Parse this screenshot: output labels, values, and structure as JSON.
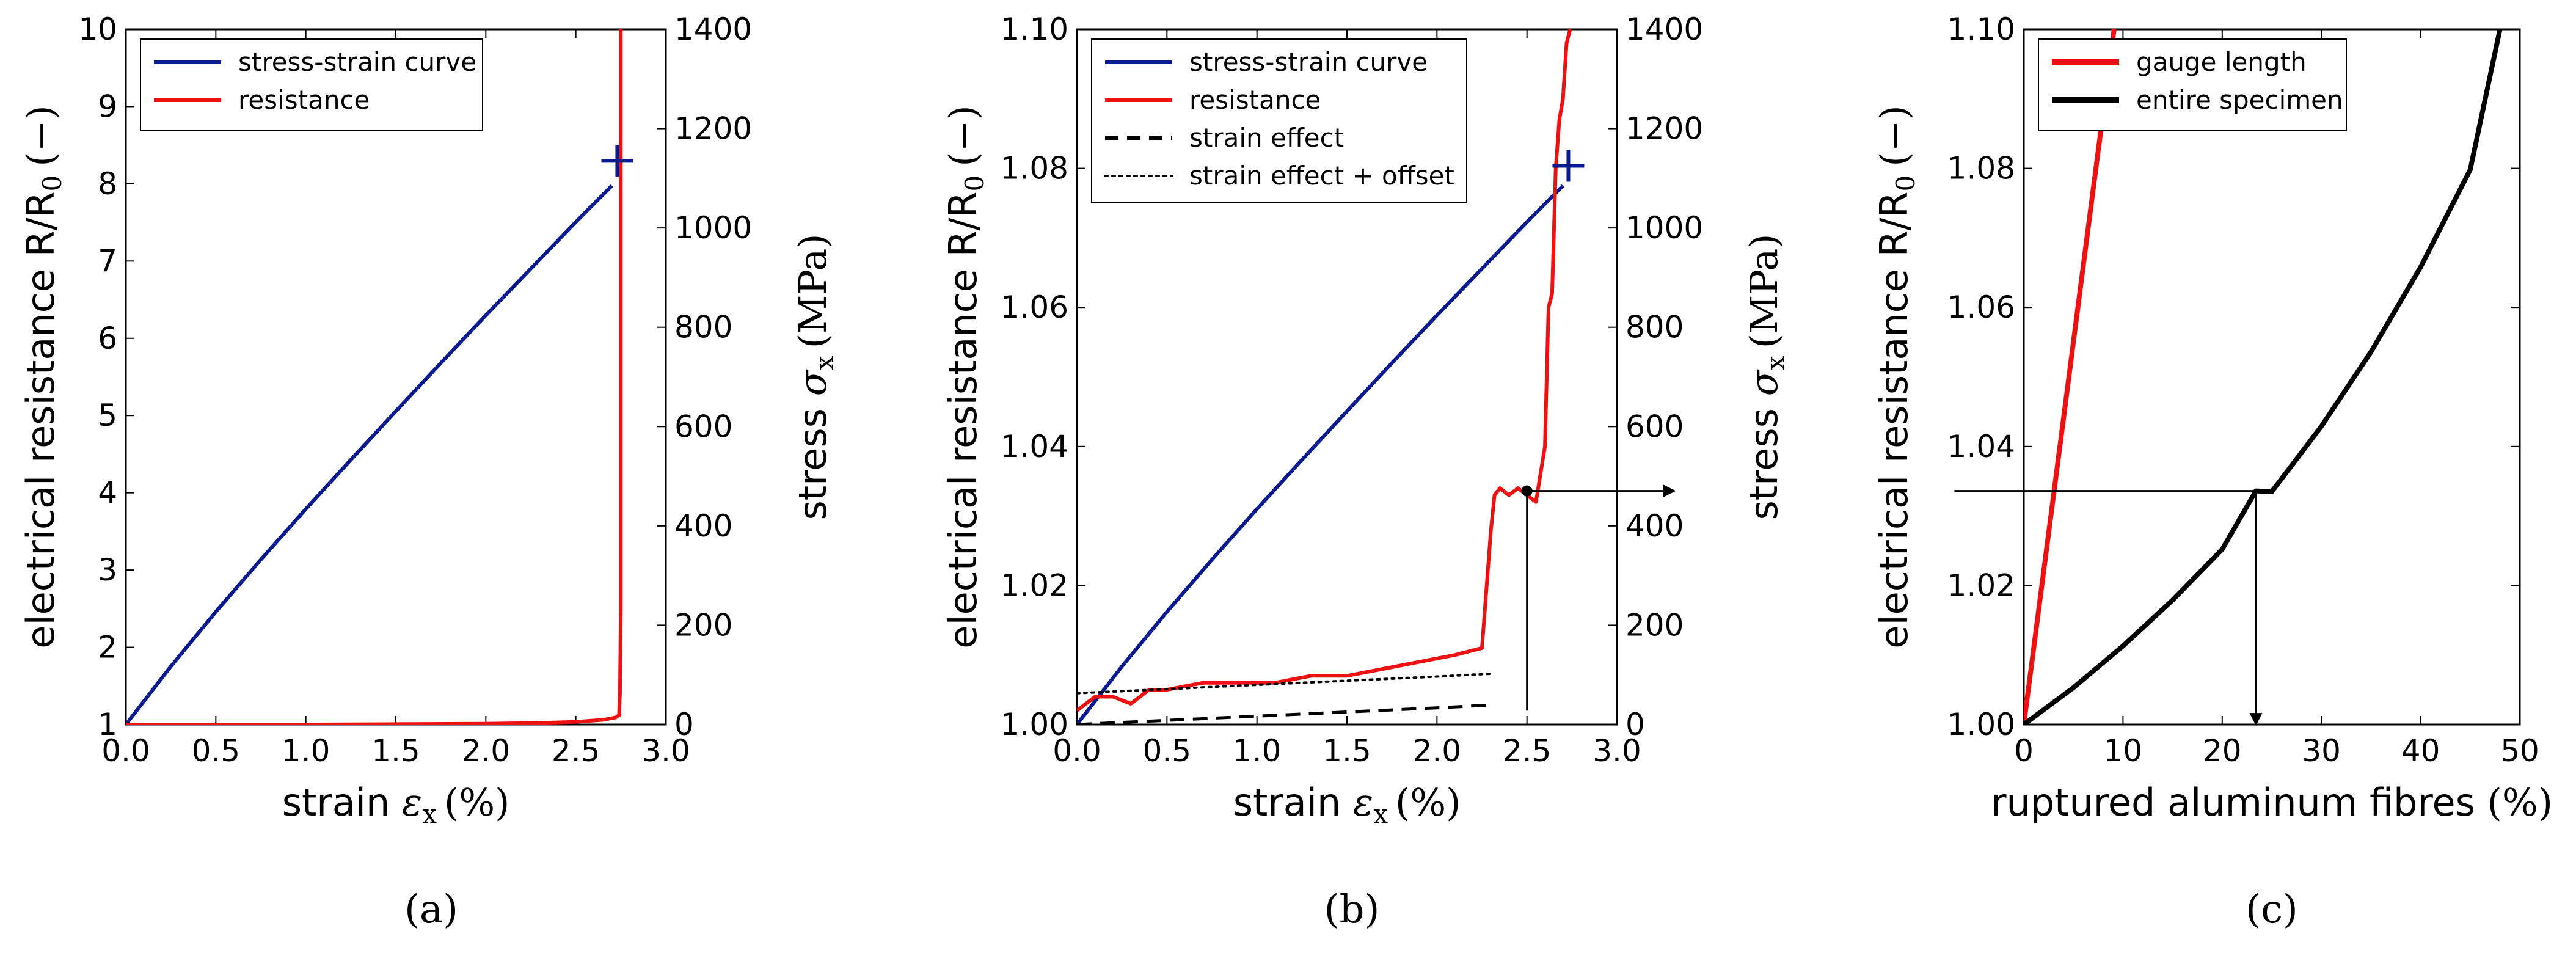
{
  "chart_data": [
    {
      "id": "a",
      "type": "line",
      "caption": "(a)",
      "xlabel": "strain",
      "xlabel_symbol": "ε",
      "xlabel_sub": "x",
      "xlabel_unit": "(%)",
      "ylabel": "electrical resistance R/R",
      "ylabel_sub": "0",
      "ylabel_unit": "(−)",
      "y2label": "stress",
      "y2label_symbol": "σ",
      "y2label_sub": "x",
      "y2label_unit": "(MPa)",
      "xlim": [
        0,
        3.0
      ],
      "ylim": [
        1,
        10
      ],
      "y2lim": [
        0,
        1400
      ],
      "xticks": [
        "0.0",
        "0.5",
        "1.0",
        "1.5",
        "2.0",
        "2.5",
        "3.0"
      ],
      "yticks": [
        "1",
        "2",
        "3",
        "4",
        "5",
        "6",
        "7",
        "8",
        "9",
        "10"
      ],
      "y2ticks": [
        "0",
        "200",
        "400",
        "600",
        "800",
        "1000",
        "1200",
        "1400"
      ],
      "legend_position": "top-left",
      "series": [
        {
          "name": "stress-strain curve",
          "axis": "y2",
          "color": "#0a1a8f",
          "x": [
            0,
            0.25,
            0.5,
            0.75,
            1.0,
            1.25,
            1.5,
            1.75,
            2.0,
            2.25,
            2.5,
            2.7
          ],
          "y": [
            0,
            117,
            227,
            332,
            434,
            533,
            631,
            728,
            824,
            918,
            1012,
            1085
          ]
        },
        {
          "name": "resistance",
          "axis": "y",
          "color": "#ee1111",
          "x": [
            0,
            0.5,
            1.0,
            1.5,
            2.0,
            2.3,
            2.5,
            2.65,
            2.72,
            2.74,
            2.745,
            2.75,
            2.75,
            2.75
          ],
          "y": [
            1.0,
            1.0,
            1.0,
            1.005,
            1.01,
            1.02,
            1.035,
            1.06,
            1.09,
            1.12,
            1.4,
            2.5,
            6,
            10
          ]
        }
      ],
      "markers": [
        {
          "label": "+",
          "axis": "y2",
          "x": 2.73,
          "y": 1135,
          "color": "#0a1a8f"
        }
      ]
    },
    {
      "id": "b",
      "type": "line",
      "caption": "(b)",
      "xlabel": "strain",
      "xlabel_symbol": "ε",
      "xlabel_sub": "x",
      "xlabel_unit": "(%)",
      "ylabel": "electrical resistance R/R",
      "ylabel_sub": "0",
      "ylabel_unit": "(−)",
      "y2label": "stress",
      "y2label_symbol": "σ",
      "y2label_sub": "x",
      "y2label_unit": "(MPa)",
      "xlim": [
        0,
        3.0
      ],
      "ylim": [
        1.0,
        1.1
      ],
      "y2lim": [
        0,
        1400
      ],
      "xticks": [
        "0.0",
        "0.5",
        "1.0",
        "1.5",
        "2.0",
        "2.5",
        "3.0"
      ],
      "yticks": [
        "1.00",
        "1.02",
        "1.04",
        "1.06",
        "1.08",
        "1.10"
      ],
      "y2ticks": [
        "0",
        "200",
        "400",
        "600",
        "800",
        "1000",
        "1200",
        "1400"
      ],
      "legend_position": "top-left",
      "series": [
        {
          "name": "stress-strain curve",
          "axis": "y2",
          "color": "#0a1a8f",
          "x": [
            0,
            0.25,
            0.5,
            0.75,
            1.0,
            1.25,
            1.5,
            1.75,
            2.0,
            2.25,
            2.5,
            2.7
          ],
          "y": [
            0,
            117,
            227,
            332,
            434,
            533,
            631,
            728,
            824,
            918,
            1012,
            1085
          ]
        },
        {
          "name": "resistance",
          "axis": "y",
          "color": "#ee1111",
          "x": [
            0,
            0.1,
            0.2,
            0.3,
            0.4,
            0.5,
            0.7,
            0.9,
            1.1,
            1.3,
            1.5,
            1.7,
            1.9,
            2.1,
            2.25,
            2.3,
            2.32,
            2.35,
            2.4,
            2.45,
            2.5,
            2.55,
            2.6,
            2.62,
            2.64,
            2.66,
            2.68,
            2.7,
            2.72,
            2.74
          ],
          "y": [
            1.002,
            1.004,
            1.004,
            1.003,
            1.005,
            1.005,
            1.006,
            1.006,
            1.006,
            1.007,
            1.007,
            1.008,
            1.009,
            1.01,
            1.011,
            1.028,
            1.033,
            1.034,
            1.033,
            1.034,
            1.033,
            1.032,
            1.04,
            1.06,
            1.062,
            1.08,
            1.087,
            1.09,
            1.098,
            1.1
          ]
        },
        {
          "name": "strain effect",
          "axis": "y",
          "color": "#000000",
          "dash": "dashed",
          "x": [
            0,
            0.5,
            1.0,
            1.5,
            2.0,
            2.3
          ],
          "y": [
            1.0,
            1.0006,
            1.0012,
            1.0018,
            1.0024,
            1.0028
          ]
        },
        {
          "name": "strain effect + offset",
          "axis": "y",
          "color": "#000000",
          "dash": "dotted",
          "x": [
            0,
            0.5,
            1.0,
            1.5,
            2.0,
            2.3
          ],
          "y": [
            1.0045,
            1.0051,
            1.0057,
            1.0063,
            1.0069,
            1.0073
          ]
        }
      ],
      "markers": [
        {
          "label": "+",
          "axis": "y2",
          "x": 2.73,
          "y": 1125,
          "color": "#0a1a8f"
        }
      ],
      "annotations": [
        {
          "type": "arrow",
          "from": [
            2.5,
            1.0336
          ],
          "to": [
            3.32,
            1.0336
          ],
          "note": "to panel (c)"
        },
        {
          "type": "line",
          "from": [
            2.5,
            1.0336
          ],
          "to": [
            2.5,
            1.002
          ]
        },
        {
          "type": "point",
          "at": [
            2.5,
            1.0336
          ]
        }
      ]
    },
    {
      "id": "c",
      "type": "line",
      "caption": "(c)",
      "xlabel": "ruptured aluminum fibres",
      "xlabel_unit": "(%)",
      "ylabel": "electrical resistance R/R",
      "ylabel_sub": "0",
      "ylabel_unit": "(−)",
      "xlim": [
        0,
        50
      ],
      "ylim": [
        1.0,
        1.1
      ],
      "xticks": [
        "0",
        "10",
        "20",
        "30",
        "40",
        "50"
      ],
      "yticks": [
        "1.00",
        "1.02",
        "1.04",
        "1.06",
        "1.08",
        "1.10"
      ],
      "legend_position": "top-left",
      "series": [
        {
          "name": "gauge length",
          "color": "#ee1111",
          "x": [
            0,
            2,
            4,
            6,
            8,
            9.1
          ],
          "y": [
            1.0,
            1.022,
            1.044,
            1.066,
            1.088,
            1.1
          ]
        },
        {
          "name": "entire specimen",
          "color": "#000000",
          "x": [
            0,
            5,
            10,
            15,
            20,
            23.4,
            25,
            30,
            35,
            40,
            45,
            48
          ],
          "y": [
            1.0,
            1.0053,
            1.0113,
            1.0179,
            1.0252,
            1.0336,
            1.0335,
            1.0429,
            1.0536,
            1.0658,
            1.0798,
            1.1
          ]
        }
      ],
      "annotations": [
        {
          "type": "line",
          "from": [
            -7,
            1.0336
          ],
          "to": [
            23.4,
            1.0336
          ],
          "note": "from panel (b)"
        },
        {
          "type": "arrow",
          "from": [
            23.4,
            1.0336
          ],
          "to": [
            23.4,
            1.0
          ],
          "note": "read-off value"
        }
      ]
    }
  ]
}
